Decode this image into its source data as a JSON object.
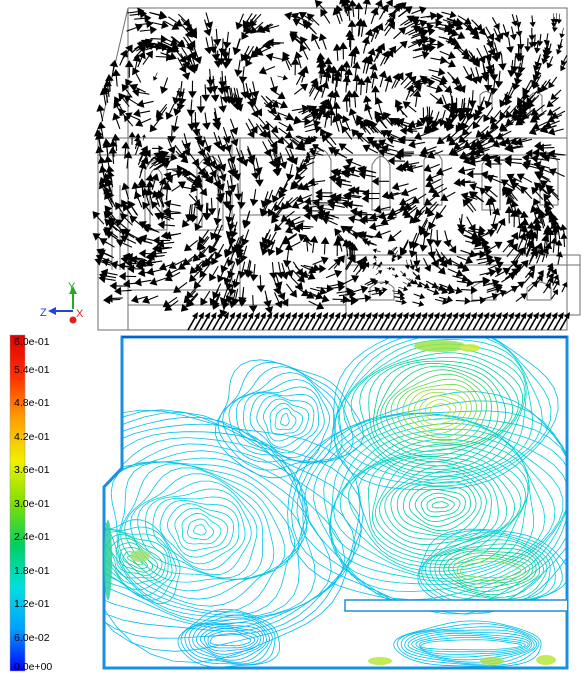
{
  "colorbar": {
    "ticks": [
      "6.0e-01",
      "5.4e-01",
      "4.8e-01",
      "4.2e-01",
      "3.6e-01",
      "3.0e-01",
      "2.4e-01",
      "1.8e-01",
      "1.2e-01",
      "6.0e-02",
      "0.0e+00"
    ],
    "min": 0.0,
    "max": 0.6,
    "colormap": [
      "#0000ff",
      "#00a0ff",
      "#00e0e0",
      "#00d060",
      "#80e000",
      "#f0f000",
      "#ffa000",
      "#ff3000",
      "#e00000"
    ]
  },
  "axes_triad": {
    "y": "Y",
    "z": "Z",
    "x": "X"
  },
  "colors": {
    "arrow": "#000000",
    "outline": "#6e6e6e"
  }
}
